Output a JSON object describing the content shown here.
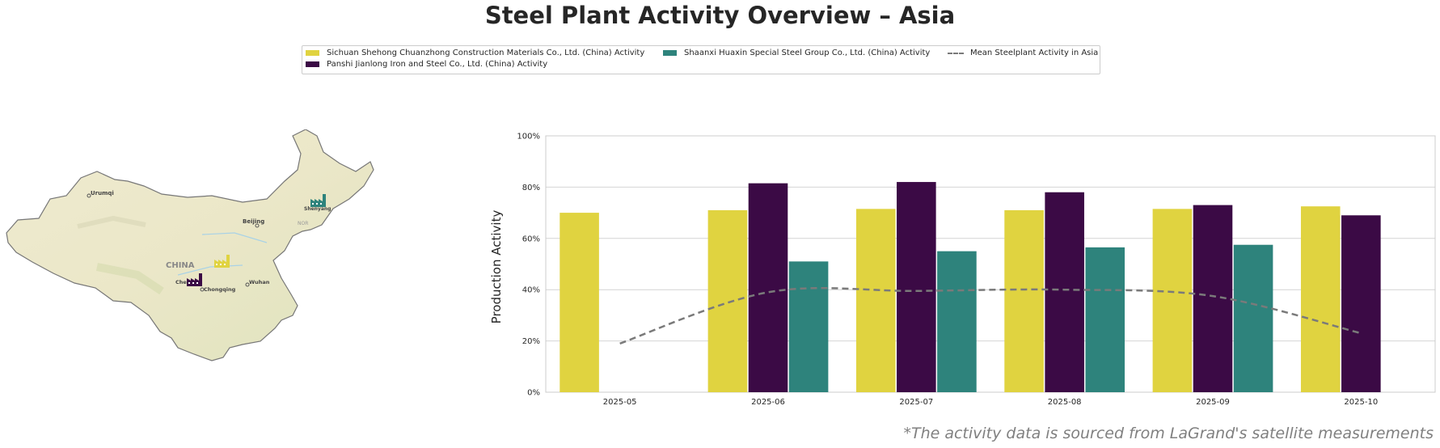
{
  "title": "Steel Plant Activity Overview – Asia",
  "footnote": "*The activity data is sourced from LaGrand's satellite measurements",
  "legend": [
    {
      "label": "Sichuan Shehong Chuanzhong Construction Materials Co., Ltd. (China) Activity",
      "color": "#e0d340",
      "kind": "bar"
    },
    {
      "label": "Panshi Jianlong Iron and Steel Co., Ltd. (China) Activity",
      "color": "#3b0a45",
      "kind": "bar"
    },
    {
      "label": "Shaanxi Huaxin Special Steel Group Co., Ltd. (China) Activity",
      "color": "#2e837c",
      "kind": "bar"
    },
    {
      "label": "Mean Steelplant Activity in Asia",
      "color": "#7a7a7a",
      "kind": "dashed-line"
    }
  ],
  "map": {
    "labels": [
      "Urumqi",
      "Beijing",
      "CHINA",
      "Chengdu",
      "Chongqing",
      "Wuhan",
      "Shenyang",
      "NOR"
    ],
    "markers": [
      {
        "name": "Sichuan Shehong Chuanzhong",
        "color": "#e0d340",
        "icon": "factory-icon"
      },
      {
        "name": "Panshi Jianlong",
        "color": "#3b0a45",
        "icon": "factory-icon"
      },
      {
        "name": "Shaanxi Huaxin",
        "color": "#2e837c",
        "icon": "factory-icon"
      }
    ]
  },
  "chart_data": {
    "type": "bar",
    "title": "",
    "xlabel": "",
    "ylabel": "Production Activity",
    "categories": [
      "2025-05",
      "2025-06",
      "2025-07",
      "2025-08",
      "2025-09",
      "2025-10"
    ],
    "ylim": [
      0,
      100
    ],
    "yticks": [
      "0%",
      "20%",
      "40%",
      "60%",
      "80%",
      "100%"
    ],
    "grid": true,
    "legend_position": "top-center",
    "series": [
      {
        "name": "Sichuan Shehong Chuanzhong Construction Materials Co., Ltd. (China) Activity",
        "type": "bar",
        "color": "#e0d340",
        "values": [
          70,
          71,
          71.5,
          71,
          71.5,
          72.5
        ]
      },
      {
        "name": "Panshi Jianlong Iron and Steel Co., Ltd. (China) Activity",
        "type": "bar",
        "color": "#3b0a45",
        "values": [
          null,
          81.5,
          82,
          78,
          73,
          69
        ]
      },
      {
        "name": "Shaanxi Huaxin Special Steel Group Co., Ltd. (China) Activity",
        "type": "bar",
        "color": "#2e837c",
        "values": [
          null,
          51,
          55,
          56.5,
          57.5,
          null
        ]
      },
      {
        "name": "Mean Steelplant Activity in Asia",
        "type": "line",
        "style": "dashed",
        "color": "#7a7a7a",
        "values": [
          19,
          39,
          39.5,
          40,
          37.5,
          23
        ]
      }
    ]
  }
}
